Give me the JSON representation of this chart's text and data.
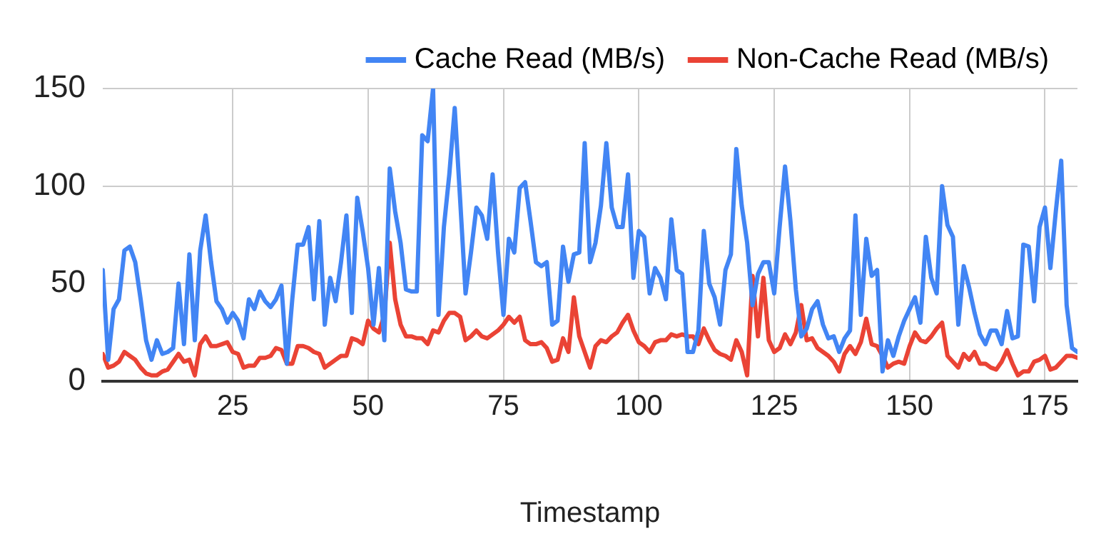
{
  "chart_data": {
    "type": "line",
    "xlabel": "Timestamp",
    "legend": "top",
    "grid": true,
    "marker": "none",
    "line_style": "solid",
    "xlim": [
      1,
      181
    ],
    "xticks": [
      25,
      50,
      75,
      100,
      125,
      150,
      175
    ],
    "ylim": [
      0,
      150
    ],
    "yticks": [
      0,
      50,
      100,
      150
    ],
    "x": [
      1,
      2,
      3,
      4,
      5,
      6,
      7,
      8,
      9,
      10,
      11,
      12,
      13,
      14,
      15,
      16,
      17,
      18,
      19,
      20,
      21,
      22,
      23,
      24,
      25,
      26,
      27,
      28,
      29,
      30,
      31,
      32,
      33,
      34,
      35,
      36,
      37,
      38,
      39,
      40,
      41,
      42,
      43,
      44,
      45,
      46,
      47,
      48,
      49,
      50,
      51,
      52,
      53,
      54,
      55,
      56,
      57,
      58,
      59,
      60,
      61,
      62,
      63,
      64,
      65,
      66,
      67,
      68,
      69,
      70,
      71,
      72,
      73,
      74,
      75,
      76,
      77,
      78,
      79,
      80,
      81,
      82,
      83,
      84,
      85,
      86,
      87,
      88,
      89,
      90,
      91,
      92,
      93,
      94,
      95,
      96,
      97,
      98,
      99,
      100,
      101,
      102,
      103,
      104,
      105,
      106,
      107,
      108,
      109,
      110,
      111,
      112,
      113,
      114,
      115,
      116,
      117,
      118,
      119,
      120,
      121,
      122,
      123,
      124,
      125,
      126,
      127,
      128,
      129,
      130,
      131,
      132,
      133,
      134,
      135,
      136,
      137,
      138,
      139,
      140,
      141,
      142,
      143,
      144,
      145,
      146,
      147,
      148,
      149,
      150,
      151,
      152,
      153,
      154,
      155,
      156,
      157,
      158,
      159,
      160,
      161,
      162,
      163,
      164,
      165,
      166,
      167,
      168,
      169,
      170,
      171,
      172,
      173,
      174,
      175,
      176,
      177,
      178,
      179,
      180,
      181
    ],
    "series": [
      {
        "name": "Cache Read (MB/s)",
        "color": "#4285f4",
        "values": [
          57,
          11,
          37,
          42,
          67,
          69,
          61,
          42,
          21,
          11,
          21,
          14,
          15,
          17,
          50,
          19,
          65,
          21,
          67,
          85,
          61,
          41,
          37,
          30,
          35,
          31,
          22,
          42,
          37,
          46,
          41,
          38,
          42,
          49,
          9,
          42,
          70,
          70,
          79,
          42,
          82,
          29,
          53,
          41,
          61,
          85,
          35,
          94,
          77,
          58,
          29,
          58,
          21,
          109,
          87,
          71,
          47,
          46,
          46,
          126,
          123,
          150,
          34,
          79,
          106,
          140,
          93,
          45,
          66,
          89,
          85,
          73,
          106,
          66,
          34,
          73,
          66,
          99,
          102,
          82,
          61,
          59,
          61,
          29,
          31,
          69,
          51,
          65,
          66,
          122,
          61,
          71,
          90,
          122,
          89,
          79,
          79,
          106,
          53,
          77,
          74,
          45,
          58,
          53,
          42,
          83,
          57,
          55,
          15,
          15,
          26,
          77,
          50,
          43,
          29,
          57,
          65,
          119,
          90,
          71,
          39,
          55,
          61,
          61,
          45,
          79,
          110,
          82,
          47,
          23,
          27,
          37,
          41,
          29,
          22,
          23,
          15,
          22,
          26,
          85,
          34,
          73,
          54,
          57,
          5,
          21,
          13,
          23,
          31,
          37,
          43,
          30,
          74,
          53,
          45,
          100,
          80,
          74,
          29,
          59,
          48,
          35,
          24,
          19,
          26,
          26,
          19,
          36,
          22,
          23,
          70,
          69,
          41,
          79,
          89,
          58,
          87,
          113,
          39,
          17,
          15
        ]
      },
      {
        "name": "Non-Cache Read (MB/s)",
        "color": "#ea4335",
        "values": [
          14,
          7,
          8,
          10,
          15,
          13,
          11,
          7,
          4,
          3,
          3,
          5,
          6,
          10,
          14,
          10,
          11,
          3,
          19,
          23,
          18,
          18,
          19,
          20,
          15,
          14,
          7,
          8,
          8,
          12,
          12,
          13,
          17,
          16,
          9,
          9,
          18,
          18,
          17,
          15,
          14,
          7,
          9,
          11,
          13,
          13,
          22,
          21,
          19,
          31,
          27,
          25,
          34,
          71,
          42,
          29,
          23,
          23,
          22,
          22,
          19,
          26,
          25,
          31,
          35,
          35,
          33,
          21,
          23,
          26,
          23,
          22,
          24,
          26,
          29,
          33,
          30,
          33,
          21,
          19,
          19,
          20,
          17,
          10,
          11,
          22,
          15,
          43,
          23,
          15,
          7,
          18,
          21,
          20,
          23,
          25,
          30,
          34,
          26,
          20,
          18,
          15,
          20,
          21,
          21,
          24,
          23,
          24,
          23,
          23,
          19,
          27,
          21,
          16,
          14,
          13,
          11,
          21,
          15,
          3,
          54,
          23,
          53,
          21,
          15,
          17,
          24,
          19,
          25,
          39,
          21,
          22,
          17,
          15,
          13,
          10,
          5,
          14,
          18,
          14,
          20,
          32,
          19,
          18,
          13,
          7,
          9,
          10,
          9,
          18,
          25,
          21,
          20,
          23,
          27,
          30,
          13,
          10,
          7,
          14,
          11,
          15,
          9,
          9,
          7,
          6,
          10,
          16,
          9,
          3,
          5,
          5,
          10,
          11,
          13,
          6,
          7,
          10,
          13,
          13,
          12
        ]
      }
    ]
  }
}
